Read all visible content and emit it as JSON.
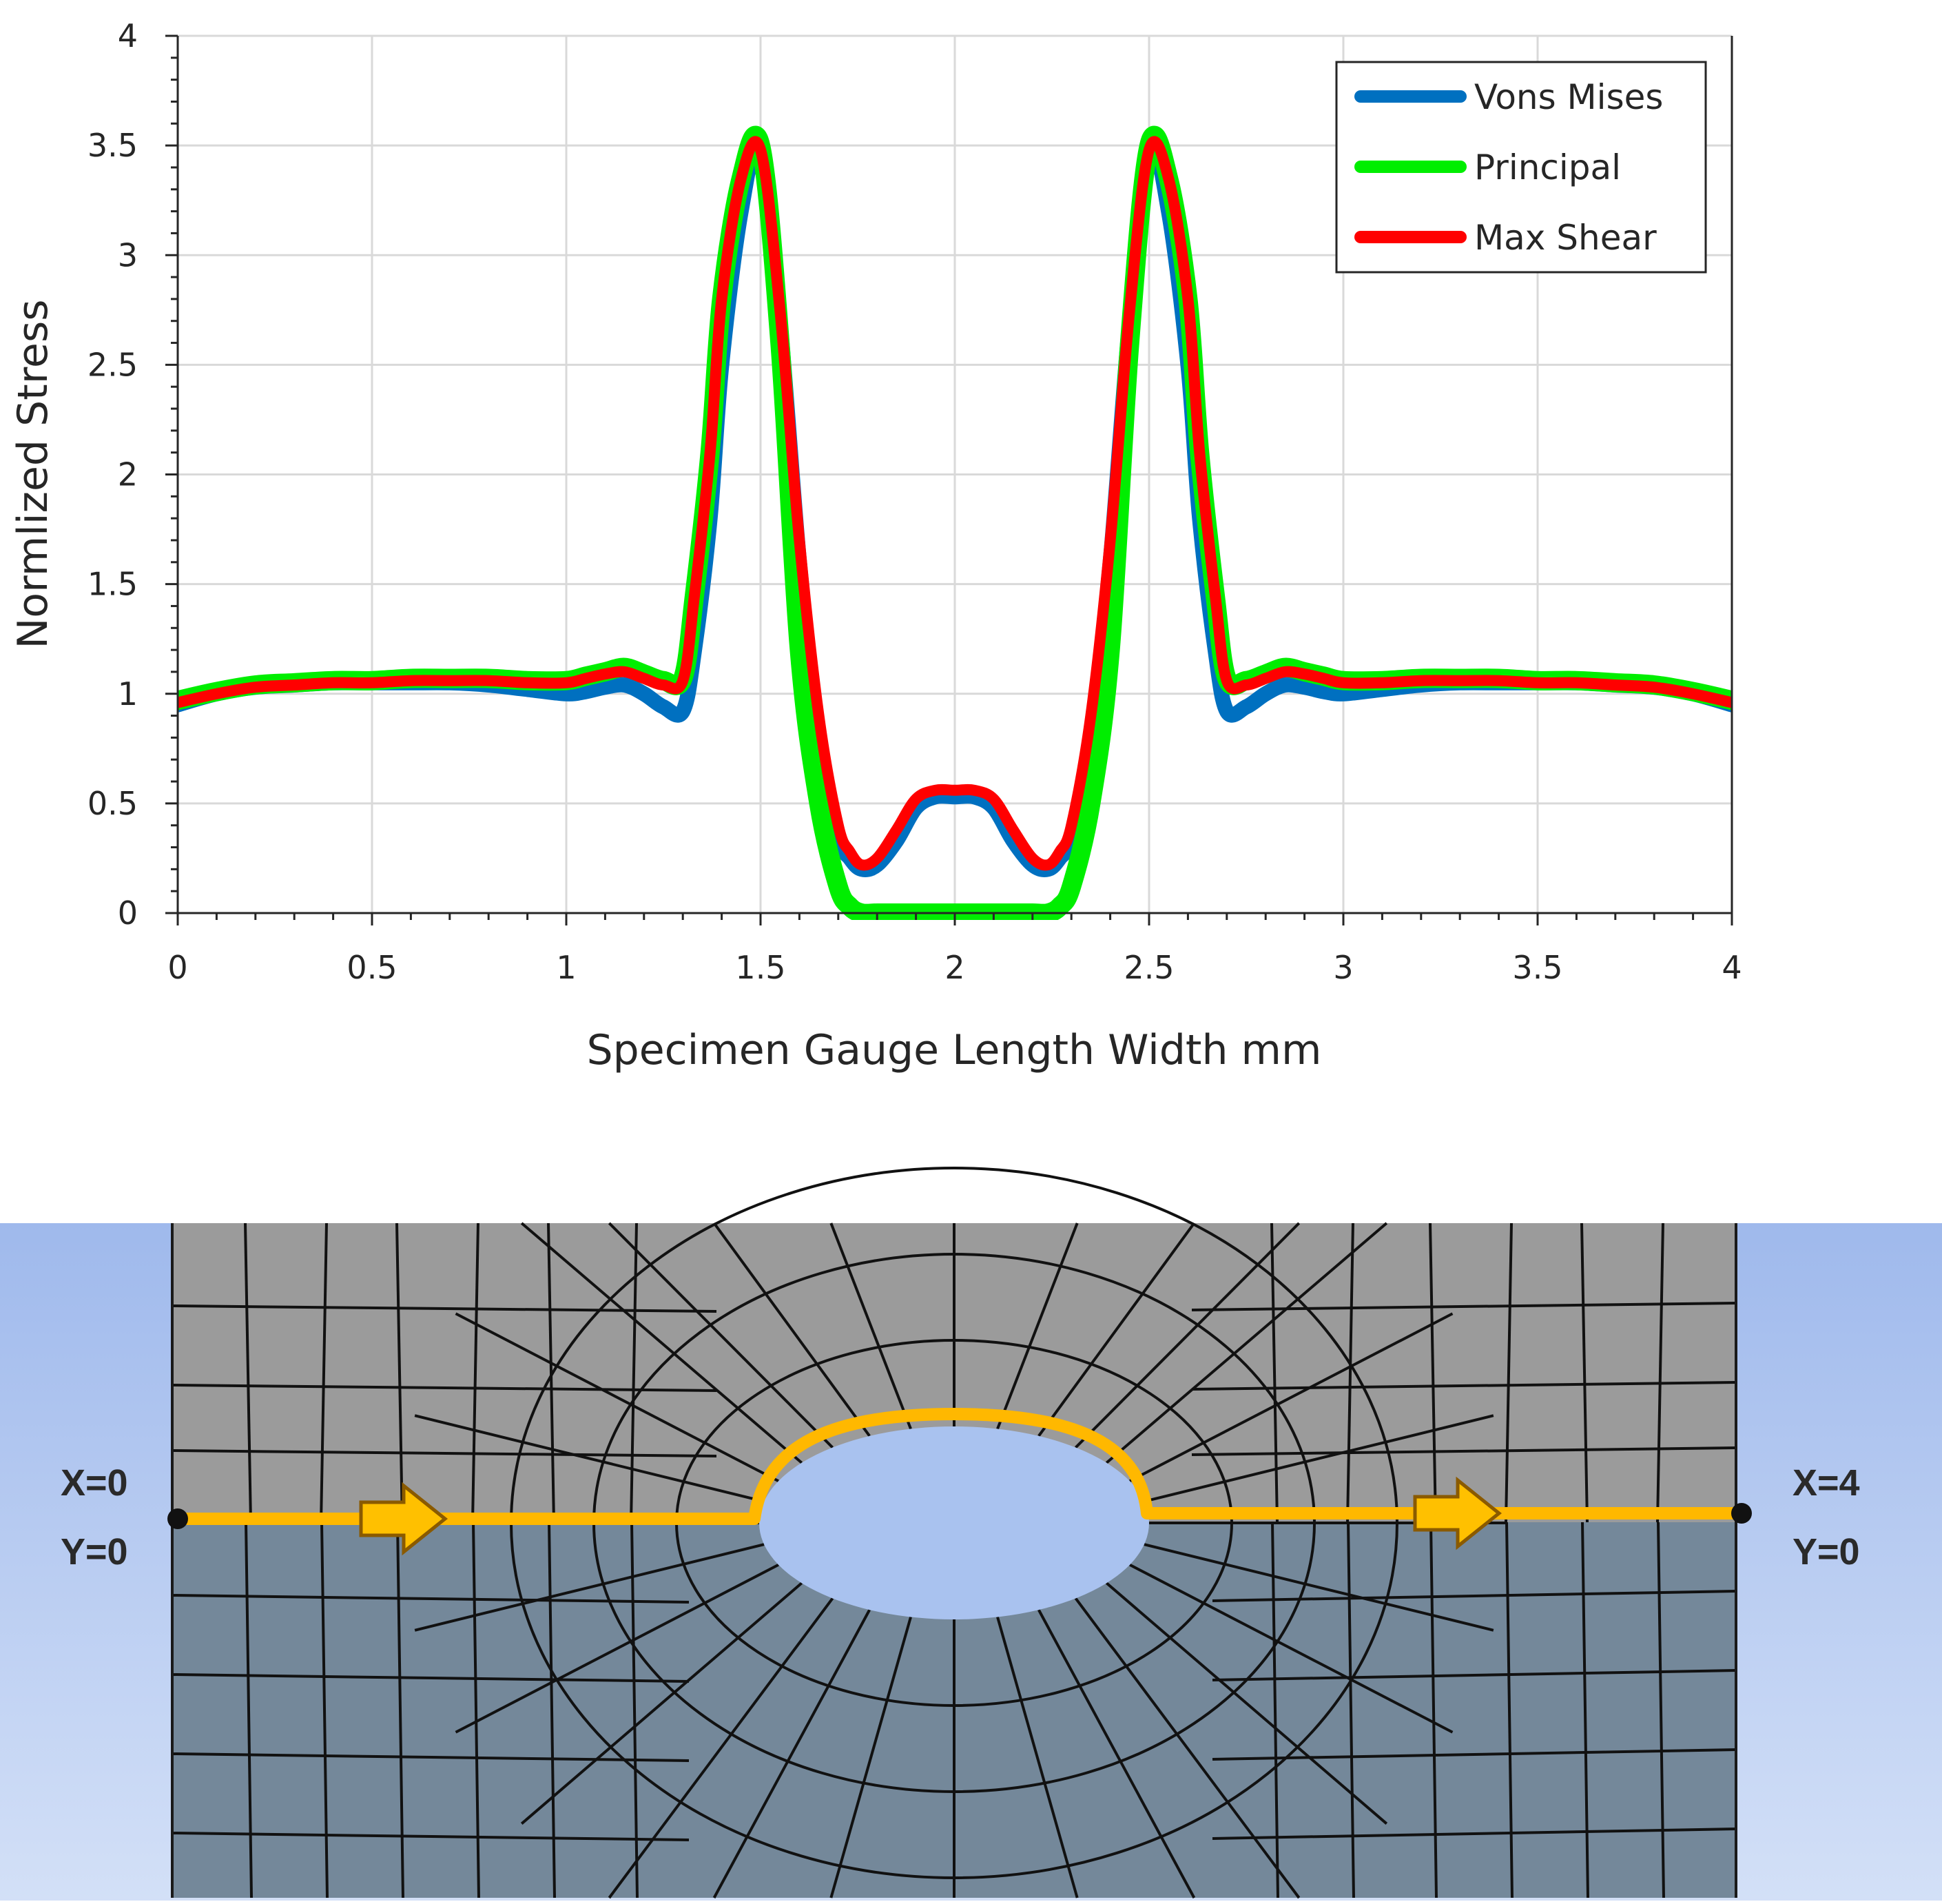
{
  "chart_data": {
    "type": "line",
    "title": "",
    "xlabel": "Specimen Gauge Length Width mm",
    "ylabel": "Normlized Stress",
    "xlim": [
      0,
      4
    ],
    "ylim": [
      0,
      4
    ],
    "xticks": [
      "0",
      "0.5",
      "1",
      "1.5",
      "2",
      "2.5",
      "3",
      "3.5",
      "4"
    ],
    "yticks": [
      "0",
      "0.5",
      "1",
      "1.5",
      "2",
      "2.5",
      "3",
      "3.5",
      "4"
    ],
    "grid": true,
    "legend_position": "top-right",
    "x": [
      0,
      0.1,
      0.2,
      0.3,
      0.4,
      0.5,
      0.6,
      0.7,
      0.8,
      0.9,
      1.0,
      1.05,
      1.1,
      1.15,
      1.2,
      1.25,
      1.3,
      1.33,
      1.37,
      1.4,
      1.45,
      1.5,
      1.55,
      1.6,
      1.65,
      1.7,
      1.73,
      1.76,
      1.8,
      1.85,
      1.9,
      1.95,
      2.0,
      2.05,
      2.1,
      2.15,
      2.2,
      2.24,
      2.27,
      2.3,
      2.35,
      2.4,
      2.45,
      2.5,
      2.55,
      2.6,
      2.63,
      2.67,
      2.7,
      2.75,
      2.8,
      2.85,
      2.9,
      2.95,
      3.0,
      3.1,
      3.2,
      3.3,
      3.4,
      3.5,
      3.6,
      3.7,
      3.8,
      3.9,
      4.0
    ],
    "series": [
      {
        "name": "Vons Mises",
        "color": "#0070c0",
        "values": [
          0.95,
          1.0,
          1.03,
          1.04,
          1.05,
          1.05,
          1.05,
          1.05,
          1.04,
          1.02,
          1.0,
          1.01,
          1.03,
          1.04,
          1.0,
          0.94,
          0.92,
          1.2,
          1.8,
          2.5,
          3.2,
          3.5,
          2.7,
          1.6,
          0.8,
          0.35,
          0.25,
          0.2,
          0.22,
          0.33,
          0.48,
          0.53,
          0.53,
          0.53,
          0.48,
          0.33,
          0.22,
          0.2,
          0.25,
          0.35,
          0.8,
          1.6,
          2.7,
          3.5,
          3.2,
          2.5,
          1.8,
          1.2,
          0.92,
          0.94,
          1.0,
          1.04,
          1.03,
          1.01,
          1.0,
          1.02,
          1.04,
          1.05,
          1.05,
          1.05,
          1.05,
          1.04,
          1.03,
          1.0,
          0.95
        ]
      },
      {
        "name": "Principal",
        "color": "#00ee00",
        "values": [
          0.97,
          1.01,
          1.04,
          1.05,
          1.06,
          1.06,
          1.07,
          1.07,
          1.07,
          1.06,
          1.06,
          1.08,
          1.1,
          1.12,
          1.09,
          1.06,
          1.07,
          1.45,
          2.1,
          2.8,
          3.35,
          3.5,
          2.6,
          1.2,
          0.5,
          0.12,
          0.03,
          0.0,
          0.0,
          0.0,
          0.0,
          0.0,
          0.0,
          0.0,
          0.0,
          0.0,
          0.0,
          0.0,
          0.03,
          0.12,
          0.5,
          1.2,
          2.6,
          3.5,
          3.35,
          2.8,
          2.1,
          1.45,
          1.07,
          1.06,
          1.09,
          1.12,
          1.1,
          1.08,
          1.06,
          1.06,
          1.07,
          1.07,
          1.07,
          1.06,
          1.06,
          1.05,
          1.04,
          1.01,
          0.97
        ]
      },
      {
        "name": "Max Shear",
        "color": "#ff0000",
        "values": [
          0.96,
          1.0,
          1.03,
          1.04,
          1.05,
          1.05,
          1.06,
          1.06,
          1.06,
          1.05,
          1.05,
          1.07,
          1.09,
          1.1,
          1.07,
          1.04,
          1.06,
          1.45,
          2.1,
          2.8,
          3.35,
          3.48,
          2.75,
          1.7,
          0.9,
          0.4,
          0.28,
          0.22,
          0.25,
          0.38,
          0.52,
          0.56,
          0.56,
          0.56,
          0.52,
          0.38,
          0.25,
          0.22,
          0.28,
          0.4,
          0.9,
          1.7,
          2.75,
          3.48,
          3.35,
          2.8,
          2.1,
          1.45,
          1.06,
          1.04,
          1.07,
          1.1,
          1.09,
          1.07,
          1.05,
          1.05,
          1.06,
          1.06,
          1.06,
          1.05,
          1.05,
          1.04,
          1.03,
          1.0,
          0.96
        ]
      }
    ]
  },
  "mesh_panel": {
    "left_label_x": "X=0",
    "left_label_y": "Y=0",
    "right_label_x": "X=4",
    "right_label_y": "Y=0",
    "path_color": "#ffb800",
    "arrow_color": "#ffc000"
  }
}
